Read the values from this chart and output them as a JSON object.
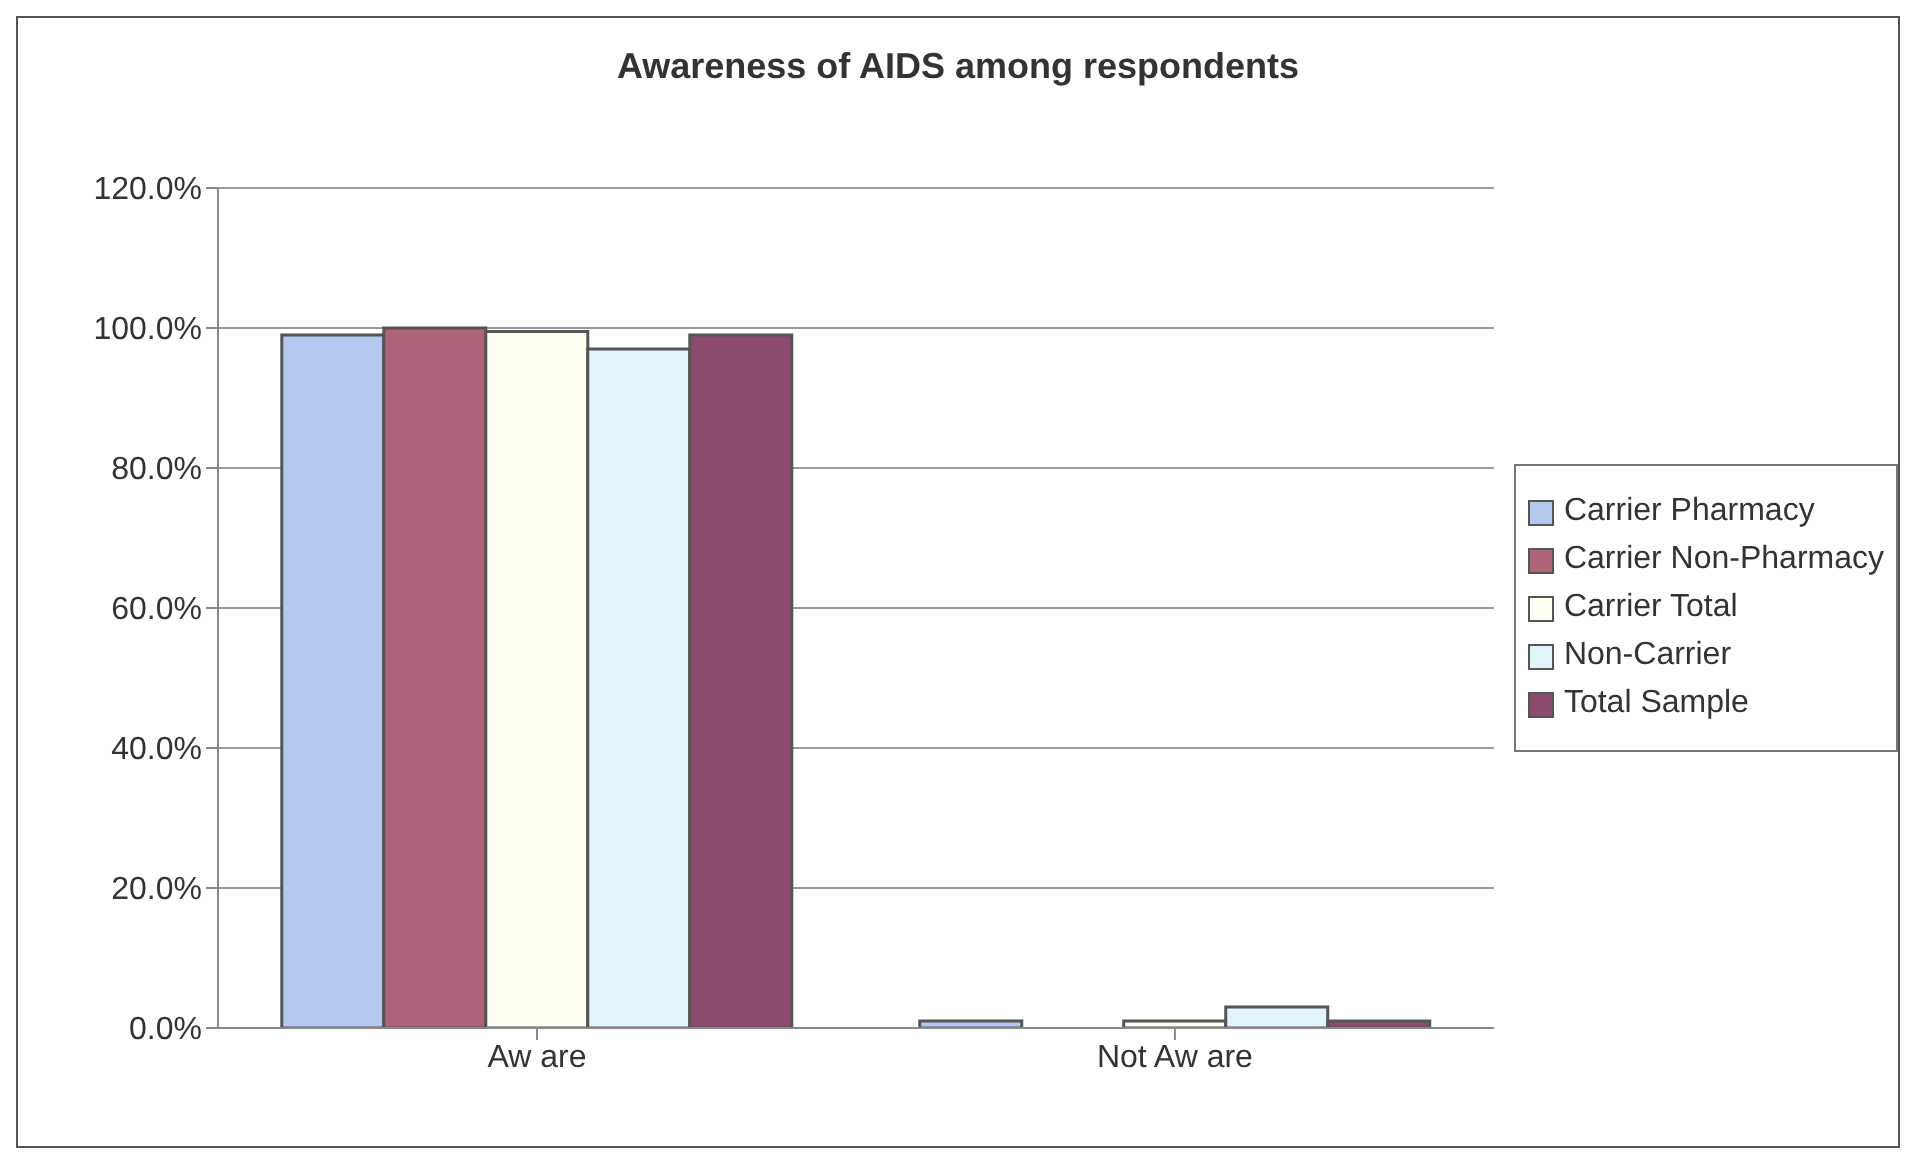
{
  "chart_data": {
    "type": "bar",
    "title": "Awareness of AIDS among respondents",
    "categories": [
      "Aw are",
      "Not Aw are"
    ],
    "series": [
      {
        "name": "Carrier Pharmacy",
        "color": "#b4c8f0",
        "values": [
          99.0,
          1.0
        ]
      },
      {
        "name": "Carrier Non-Pharmacy",
        "color": "#b06478",
        "values": [
          100.0,
          0.0
        ]
      },
      {
        "name": "Carrier Total",
        "color": "#fffff4",
        "values": [
          99.5,
          1.0
        ]
      },
      {
        "name": "Non-Carrier",
        "color": "#e0f4fa",
        "values": [
          97.0,
          3.0
        ]
      },
      {
        "name": "Total Sample",
        "color": "#8c4a6e",
        "values": [
          99.0,
          1.0
        ]
      }
    ],
    "ylim": [
      0,
      120
    ],
    "yticks": [
      {
        "value": 0,
        "label": "0.0%"
      },
      {
        "value": 20,
        "label": "20.0%"
      },
      {
        "value": 40,
        "label": "40.0%"
      },
      {
        "value": 60,
        "label": "60.0%"
      },
      {
        "value": 80,
        "label": "80.0%"
      },
      {
        "value": 100,
        "label": "100.0%"
      },
      {
        "value": 120,
        "label": "120.0%"
      }
    ],
    "grid": "y",
    "legend": "right"
  }
}
